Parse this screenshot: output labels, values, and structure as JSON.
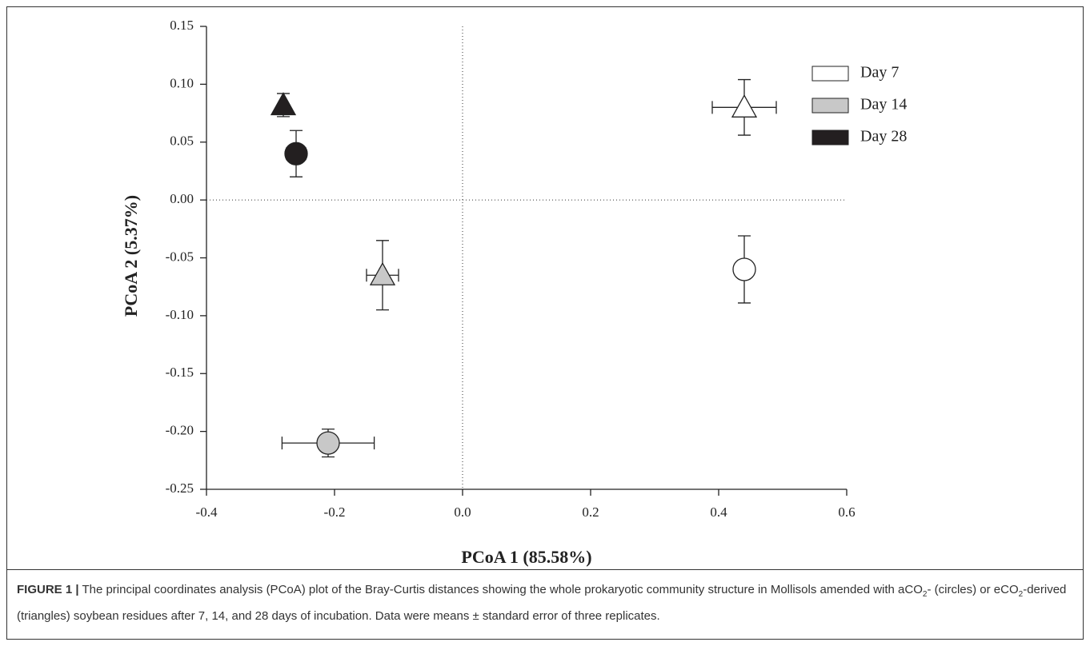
{
  "chart_data": {
    "type": "scatter",
    "xlabel": "PCoA 1 (85.58%)",
    "ylabel": "PCoA 2 (5.37%)",
    "xlim": [
      -0.4,
      0.6
    ],
    "ylim": [
      -0.25,
      0.15
    ],
    "xticks": [
      -0.4,
      -0.2,
      {
        "value": 0,
        "label": "0.0"
      },
      0.2,
      0.4,
      0.6
    ],
    "yticks": [
      0.15,
      {
        "value": 0.1,
        "label": "0.10"
      },
      0.05,
      {
        "value": 0,
        "label": "0.00"
      },
      -0.05,
      {
        "value": -0.1,
        "label": "-0.10"
      },
      -0.15,
      {
        "value": -0.2,
        "label": "-0.20"
      },
      -0.25
    ],
    "zero_lines": true,
    "legend": "upper right",
    "markers": [
      "circle",
      "triangle"
    ],
    "series": [
      {
        "name": "Day 7",
        "color": "#ffffff",
        "x": [
          0.44,
          0.44
        ],
        "values": [
          -0.06,
          0.08
        ],
        "xerr": [
          0,
          0.05
        ],
        "yerr": [
          0.029,
          0.024
        ]
      },
      {
        "name": "Day 14",
        "color": "#c8c8c8",
        "x": [
          -0.21,
          -0.125
        ],
        "values": [
          -0.21,
          -0.065
        ],
        "xerr": [
          0.072,
          0.025
        ],
        "yerr": [
          0.012,
          0.03
        ]
      },
      {
        "name": "Day 28",
        "color": "#231f20",
        "x": [
          -0.26,
          -0.28
        ],
        "values": [
          0.04,
          0.082
        ],
        "xerr": [
          0.015,
          0
        ],
        "yerr": [
          0.02,
          0.01
        ]
      }
    ]
  },
  "caption": {
    "label": "FIGURE 1 |",
    "parts": [
      " The principal coordinates analysis (PCoA) plot of the Bray-Curtis distances showing the whole prokaryotic community structure in Mollisols amended with aCO",
      "2",
      "- (circles) or eCO",
      "2",
      "-derived (triangles) soybean residues after 7, 14, and 28 days of incubation. Data were means ± standard error of three replicates."
    ]
  }
}
